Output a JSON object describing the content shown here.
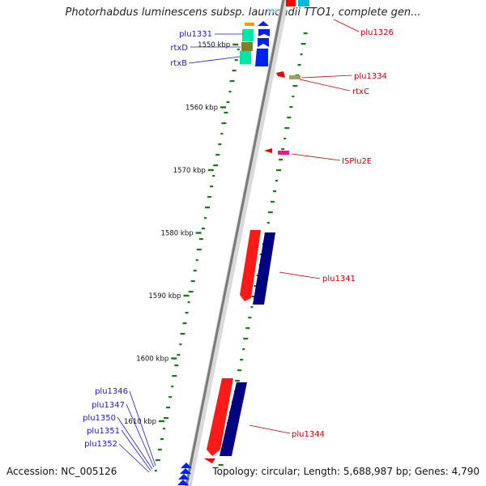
{
  "title": "Photorhabdus luminescens subsp. laumondii TTO1, complete gen...",
  "accession": "Accession: NC_005126",
  "summary": "Topology: circular; Length: 5,688,987 bp; Genes: 4,790",
  "ticks": [
    {
      "label": "1550 kbp",
      "pos": 1550
    },
    {
      "label": "1560 kbp",
      "pos": 1560
    },
    {
      "label": "1570 kbp",
      "pos": 1570
    },
    {
      "label": "1580 kbp",
      "pos": 1580
    },
    {
      "label": "1590 kbp",
      "pos": 1590
    },
    {
      "label": "1600 kbp",
      "pos": 1600
    },
    {
      "label": "1610 kbp",
      "pos": 1610
    }
  ],
  "labels_left": [
    {
      "name": "plu1331"
    },
    {
      "name": "rtxD"
    },
    {
      "name": "rtxB"
    },
    {
      "name": "plu1346"
    },
    {
      "name": "plu1347"
    },
    {
      "name": "plu1350"
    },
    {
      "name": "plu1351"
    },
    {
      "name": "plu1352"
    }
  ],
  "labels_right": [
    {
      "name": "plu1326"
    },
    {
      "name": "plu1334"
    },
    {
      "name": "rtxC"
    },
    {
      "name": "ISPlu2E"
    },
    {
      "name": "plu1341"
    },
    {
      "name": "plu1344"
    }
  ],
  "colors": {
    "backbone": "#7a7a7a",
    "forward": "#ff0000",
    "reverse": "#0000cc",
    "dots": "#1a7a1a",
    "label_left": "#1a1acc",
    "label_right": "#cc0000"
  }
}
